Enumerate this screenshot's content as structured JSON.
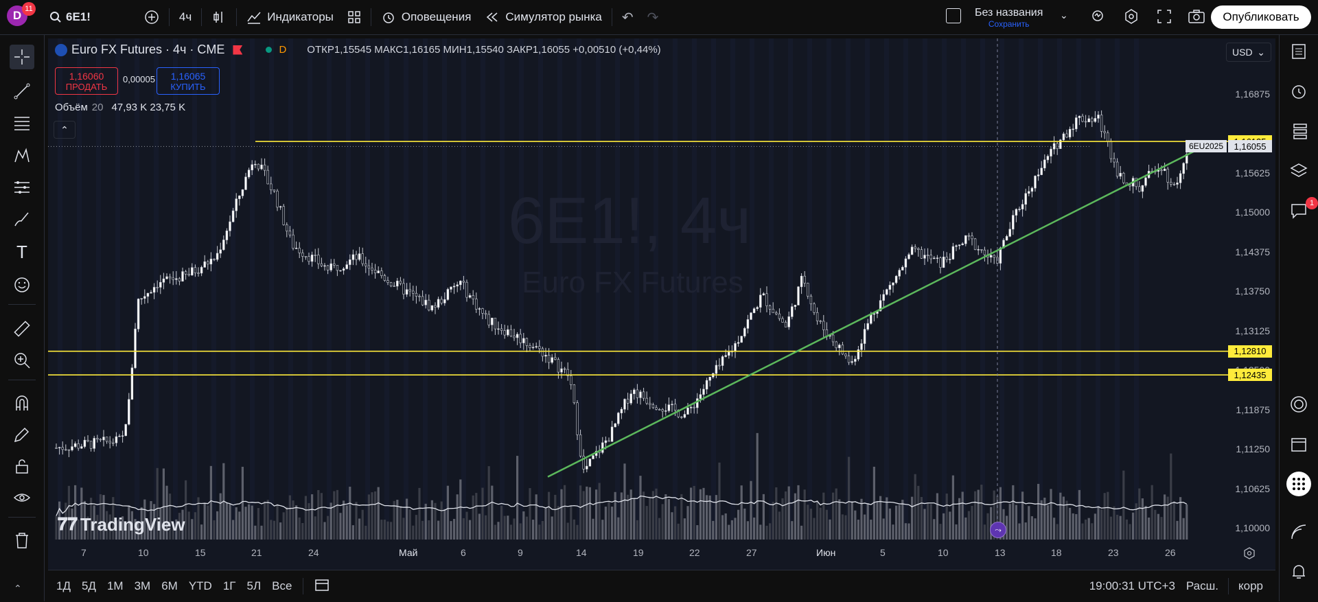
{
  "topbar": {
    "avatar_letter": "D",
    "avatar_badge": "11",
    "symbol": "6E1!",
    "interval": "4ч",
    "indicators_label": "Индикаторы",
    "alerts_label": "Оповещения",
    "replay_label": "Симулятор рынка",
    "layout_name": "Без названия",
    "save_label": "Сохранить",
    "publish_label": "Опубликовать"
  },
  "legend": {
    "title": "Euro FX Futures · 4ч · CME",
    "d_badge": "D",
    "ohlc": "ОТКР1,15545 МАКС1,16165 МИН1,15540 ЗАКР1,16055 +0,00510 (+0,44%)",
    "sell_price": "1,16060",
    "sell_label": "ПРОДАТЬ",
    "spread": "0,00005",
    "buy_price": "1,16065",
    "buy_label": "КУПИТЬ",
    "volume_label": "Объём",
    "volume_len": "20",
    "volume_vals": "47,93 K  23,75 K"
  },
  "currency": "USD",
  "watermark": {
    "big": "6E1!, 4ч",
    "small": "Euro FX Futures"
  },
  "logo": "TradingView",
  "right_badge": "1",
  "chart_data": {
    "type": "candlestick",
    "y_ticks": [
      "1,16875",
      "1,15625",
      "1,15000",
      "1,14375",
      "1,13750",
      "1,13125",
      "1,12500",
      "1,11875",
      "1,11250",
      "1,10625",
      "1,10000"
    ],
    "x_ticks": [
      "7",
      "10",
      "15",
      "21",
      "24",
      "Май",
      "6",
      "9",
      "14",
      "19",
      "22",
      "27",
      "Июн",
      "5",
      "10",
      "13",
      "18",
      "23",
      "26"
    ],
    "ylim": [
      1.0995,
      1.1725
    ],
    "price_labels": {
      "line_high": "1,16135",
      "last": "1,16055",
      "last_symbol": "6EU2025",
      "line_mid": "1,12810",
      "line_low": "1,12435"
    },
    "horizontal_levels": [
      1.16135,
      1.1281,
      1.12435
    ],
    "trendline": {
      "from": 1.1082,
      "to": 1.1609
    },
    "current_price": 1.16055
  },
  "bottombar": {
    "ranges": [
      "1Д",
      "5Д",
      "1М",
      "3М",
      "6М",
      "YTD",
      "1Г",
      "5Л",
      "Все"
    ],
    "clock": "19:00:31 UTC+3",
    "session": "Расш.",
    "adjust": "корр"
  },
  "colors": {
    "bg": "#131722",
    "yellow": "#ffeb3b",
    "green": "#5cb85c",
    "sell": "#f23645",
    "buy": "#2962ff"
  }
}
